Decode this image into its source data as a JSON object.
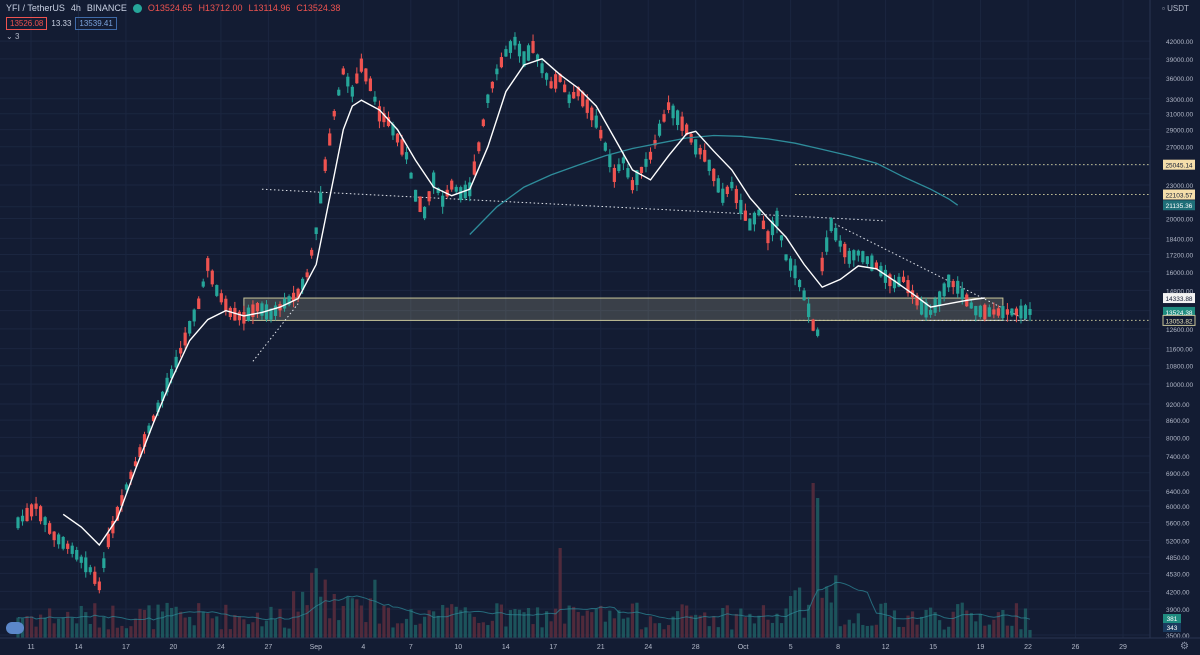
{
  "header": {
    "symbol": "YFI / TetherUS",
    "interval": "4h",
    "exchange": "BINANCE",
    "open": "O13524.65",
    "high": "H13712.00",
    "low": "L13114.96",
    "close": "C13524.38",
    "status_icon": "green-dot-icon"
  },
  "quote": {
    "sell": "13526.08",
    "spread": "13.33",
    "buy": "13539.41"
  },
  "indicator_toggle": "3",
  "currency": "USDT",
  "colors": {
    "background": "#131c33",
    "up": "#26a69a",
    "down": "#ef5350",
    "ma_fast": "#ffffff",
    "ma_slow": "#2e8c9a",
    "zone": "#c8c59a",
    "trendline": "#dfe3ea"
  },
  "chart_data": {
    "type": "candlestick",
    "y_scale": "log",
    "ylim": [
      3500,
      44000
    ],
    "y_ticks": [
      "42000.00",
      "39000.00",
      "36000.00",
      "33000.00",
      "31000.00",
      "29000.00",
      "27000.00",
      "25000.00",
      "23000.00",
      "21000.00",
      "20000.00",
      "18400.00",
      "17200.00",
      "16000.00",
      "14800.00",
      "13600.00",
      "12600.00",
      "11600.00",
      "10800.00",
      "10000.00",
      "9200.00",
      "8600.00",
      "8000.00",
      "7400.00",
      "6900.00",
      "6400.00",
      "6000.00",
      "5600.00",
      "5200.00",
      "4850.00",
      "4530.00",
      "4200.00",
      "3900.00",
      "3500.00"
    ],
    "x_ticks": [
      "11",
      "14",
      "17",
      "20",
      "24",
      "27",
      "Sep",
      "4",
      "7",
      "10",
      "14",
      "17",
      "21",
      "24",
      "28",
      "Oct",
      "5",
      "8",
      "12",
      "15",
      "19",
      "22",
      "26",
      "29"
    ],
    "price_labels": [
      {
        "value": 25045.14,
        "text": "25045.14",
        "style": "level"
      },
      {
        "value": 22103.57,
        "text": "22103.57",
        "style": "level"
      },
      {
        "value": 21135.36,
        "text": "21135.36",
        "style": "ma-slow"
      },
      {
        "value": 14333.88,
        "text": "14333.88",
        "style": "ma-fast"
      },
      {
        "value": 13524.38,
        "text": "13524.38",
        "style": "last"
      },
      {
        "value": 13053.82,
        "text": "13053.82",
        "style": "zone"
      }
    ],
    "volume_labels": [
      "381",
      "343"
    ],
    "zone": {
      "from": 13053.82,
      "to": 14333.88
    },
    "price_path": [
      [
        0,
        5600
      ],
      [
        4,
        6000
      ],
      [
        8,
        5300
      ],
      [
        12,
        5000
      ],
      [
        16,
        4600
      ],
      [
        18,
        4300
      ],
      [
        20,
        5200
      ],
      [
        24,
        6500
      ],
      [
        28,
        7900
      ],
      [
        32,
        9500
      ],
      [
        36,
        11500
      ],
      [
        40,
        14000
      ],
      [
        42,
        16500
      ],
      [
        44,
        14800
      ],
      [
        47,
        13500
      ],
      [
        50,
        13200
      ],
      [
        53,
        13800
      ],
      [
        56,
        13400
      ],
      [
        59,
        14000
      ],
      [
        62,
        14600
      ],
      [
        64,
        15800
      ],
      [
        66,
        19000
      ],
      [
        68,
        25000
      ],
      [
        70,
        31000
      ],
      [
        72,
        37000
      ],
      [
        74,
        34000
      ],
      [
        76,
        38000
      ],
      [
        78,
        35000
      ],
      [
        80,
        31000
      ],
      [
        82,
        30000
      ],
      [
        84,
        28000
      ],
      [
        86,
        26000
      ],
      [
        88,
        22000
      ],
      [
        90,
        20500
      ],
      [
        92,
        23500
      ],
      [
        94,
        21500
      ],
      [
        96,
        23000
      ],
      [
        98,
        22200
      ],
      [
        100,
        22600
      ],
      [
        102,
        27000
      ],
      [
        104,
        33000
      ],
      [
        106,
        37000
      ],
      [
        108,
        40000
      ],
      [
        110,
        42000
      ],
      [
        112,
        39000
      ],
      [
        114,
        41000
      ],
      [
        116,
        37500
      ],
      [
        118,
        35000
      ],
      [
        120,
        36000
      ],
      [
        122,
        33000
      ],
      [
        124,
        34000
      ],
      [
        126,
        32000
      ],
      [
        128,
        30000
      ],
      [
        130,
        27000
      ],
      [
        132,
        24000
      ],
      [
        134,
        25500
      ],
      [
        136,
        23000
      ],
      [
        138,
        24500
      ],
      [
        140,
        26000
      ],
      [
        142,
        29000
      ],
      [
        144,
        32000
      ],
      [
        146,
        30500
      ],
      [
        148,
        29000
      ],
      [
        150,
        27000
      ],
      [
        152,
        26000
      ],
      [
        154,
        24000
      ],
      [
        156,
        22000
      ],
      [
        158,
        23000
      ],
      [
        160,
        21000
      ],
      [
        162,
        19500
      ],
      [
        164,
        20500
      ],
      [
        166,
        18500
      ],
      [
        168,
        20000
      ],
      [
        170,
        17000
      ],
      [
        172,
        16000
      ],
      [
        174,
        14500
      ],
      [
        176,
        12800
      ],
      [
        177,
        12400
      ],
      [
        178,
        16500
      ],
      [
        180,
        19500
      ],
      [
        182,
        18000
      ],
      [
        184,
        17000
      ],
      [
        186,
        17300
      ],
      [
        188,
        16800
      ],
      [
        190,
        16400
      ],
      [
        192,
        15700
      ],
      [
        194,
        15200
      ],
      [
        196,
        15500
      ],
      [
        198,
        14600
      ],
      [
        200,
        13800
      ],
      [
        202,
        13500
      ],
      [
        204,
        14300
      ],
      [
        206,
        15400
      ],
      [
        208,
        15000
      ],
      [
        210,
        14200
      ],
      [
        212,
        13600
      ],
      [
        214,
        13524
      ]
    ],
    "ma_fast_path": [
      [
        10,
        5800
      ],
      [
        14,
        5500
      ],
      [
        18,
        5100
      ],
      [
        22,
        5700
      ],
      [
        26,
        7000
      ],
      [
        30,
        8500
      ],
      [
        34,
        10200
      ],
      [
        38,
        12000
      ],
      [
        42,
        13100
      ],
      [
        46,
        13600
      ],
      [
        50,
        13300
      ],
      [
        54,
        13500
      ],
      [
        58,
        13800
      ],
      [
        62,
        14300
      ],
      [
        66,
        16500
      ],
      [
        70,
        24000
      ],
      [
        72,
        29000
      ],
      [
        74,
        32000
      ],
      [
        76,
        32800
      ],
      [
        80,
        31500
      ],
      [
        84,
        29000
      ],
      [
        88,
        25500
      ],
      [
        92,
        22800
      ],
      [
        96,
        22000
      ],
      [
        100,
        22600
      ],
      [
        104,
        27000
      ],
      [
        108,
        34000
      ],
      [
        112,
        38000
      ],
      [
        116,
        39000
      ],
      [
        120,
        36500
      ],
      [
        124,
        34500
      ],
      [
        128,
        32000
      ],
      [
        132,
        28000
      ],
      [
        136,
        24500
      ],
      [
        140,
        23500
      ],
      [
        144,
        26000
      ],
      [
        148,
        28500
      ],
      [
        150,
        28800
      ],
      [
        154,
        26500
      ],
      [
        158,
        24500
      ],
      [
        162,
        21800
      ],
      [
        166,
        20000
      ],
      [
        170,
        18500
      ],
      [
        174,
        16500
      ],
      [
        178,
        15000
      ],
      [
        182,
        15500
      ],
      [
        186,
        16400
      ],
      [
        190,
        16200
      ],
      [
        194,
        15400
      ],
      [
        198,
        14600
      ],
      [
        202,
        13800
      ],
      [
        206,
        14000
      ],
      [
        210,
        14200
      ],
      [
        214,
        14334
      ]
    ],
    "ma_slow_path": [
      [
        100,
        18700
      ],
      [
        106,
        21000
      ],
      [
        112,
        22800
      ],
      [
        118,
        24000
      ],
      [
        124,
        25000
      ],
      [
        130,
        26000
      ],
      [
        136,
        26800
      ],
      [
        142,
        27400
      ],
      [
        148,
        28000
      ],
      [
        154,
        28300
      ],
      [
        160,
        28200
      ],
      [
        166,
        27900
      ],
      [
        172,
        27400
      ],
      [
        178,
        26700
      ],
      [
        184,
        26000
      ],
      [
        190,
        25200
      ],
      [
        196,
        23800
      ],
      [
        202,
        22600
      ],
      [
        206,
        21700
      ],
      [
        208,
        21135
      ]
    ],
    "trendlines": [
      {
        "from": [
          52,
          11000
        ],
        "to": [
          62,
          14000
        ]
      },
      {
        "from": [
          54,
          22600
        ],
        "to": [
          192,
          19800
        ]
      },
      {
        "from": [
          180,
          19700
        ],
        "to": [
          223,
          13100
        ]
      },
      {
        "from": [
          200,
          13053
        ],
        "to": [
          224,
          13053
        ]
      }
    ],
    "levels": [
      25045.14,
      22103.57,
      13053.82
    ]
  }
}
